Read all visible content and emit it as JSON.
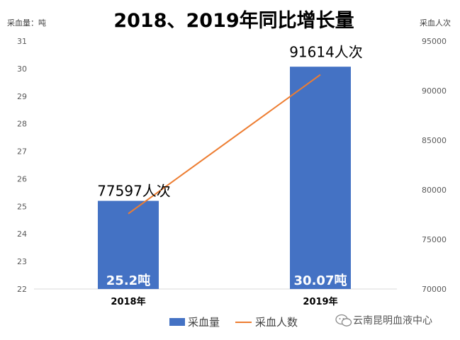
{
  "chart_data": {
    "type": "bar",
    "title": "2018、2019年同比增长量",
    "left_axis_unit": "采血量：吨",
    "right_axis_unit": "采血人次",
    "categories": [
      "2018年",
      "2019年"
    ],
    "left_ylim": [
      22,
      31
    ],
    "left_ticks": [
      22,
      23,
      24,
      25,
      26,
      27,
      28,
      29,
      30,
      31
    ],
    "right_ylim": [
      70000,
      95000
    ],
    "right_ticks": [
      70000,
      75000,
      80000,
      85000,
      90000,
      95000
    ],
    "grid": false,
    "legend_position": "bottom",
    "series": [
      {
        "name": "采血量",
        "type": "bar",
        "axis": "left",
        "values": [
          25.2,
          30.07
        ],
        "labels": [
          "25.2吨",
          "30.07吨"
        ],
        "color": "#4472C4"
      },
      {
        "name": "采血人数",
        "type": "line",
        "axis": "right",
        "values": [
          77597,
          91614
        ],
        "labels": [
          "77597人次",
          "91614人次"
        ],
        "color": "#ED7D31"
      }
    ]
  },
  "watermark": {
    "text": "云南昆明血液中心",
    "icon": "wechat-icon"
  }
}
